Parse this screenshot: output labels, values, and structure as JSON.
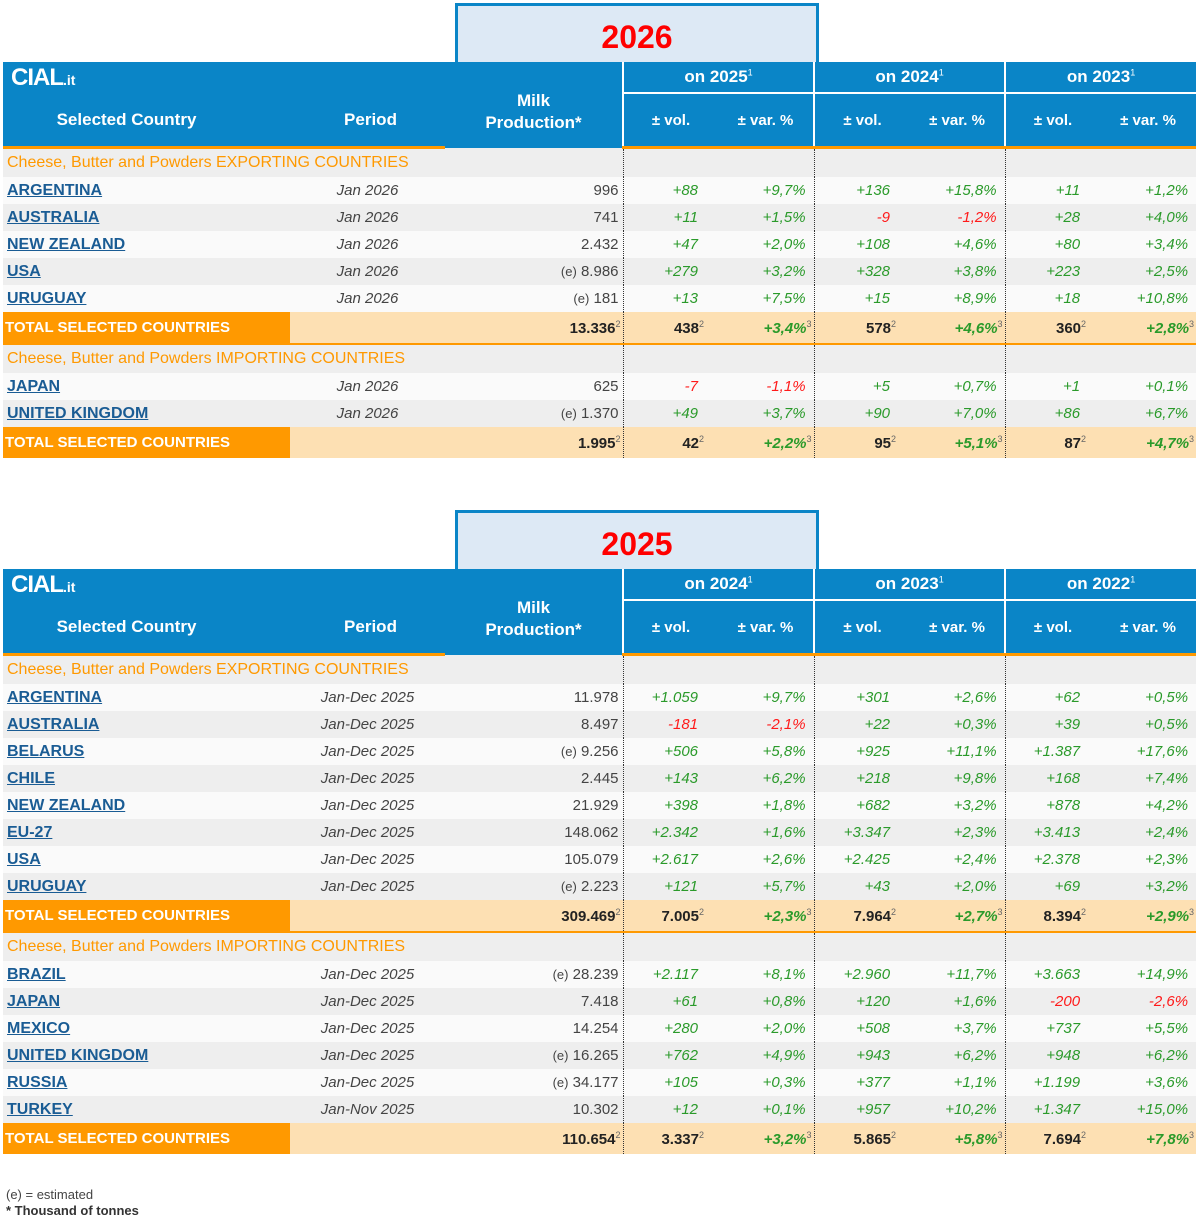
{
  "logo": {
    "main": "CIAL",
    "suffix": ".it"
  },
  "headers": {
    "country": "Selected Country",
    "period": "Period",
    "milk_line1": "Milk",
    "milk_line2": "Production*",
    "vol": "± vol.",
    "var": "± var. %"
  },
  "total_label": "TOTAL SELECTED COUNTRIES",
  "sup_vol": "2",
  "sup_pct": "3",
  "group_sup": "1",
  "tables": [
    {
      "year": "2026",
      "groups": [
        "on 2025",
        "on 2024",
        "on 2023"
      ],
      "sections": [
        {
          "title": "Cheese, Butter and Powders EXPORTING COUNTRIES",
          "rows": [
            {
              "country": "ARGENTINA",
              "period": "Jan 2026",
              "est": false,
              "milk": "996",
              "vals": [
                "+88",
                "+9,7%",
                "+136",
                "+15,8%",
                "+11",
                "+1,2%"
              ]
            },
            {
              "country": "AUSTRALIA",
              "period": "Jan 2026",
              "est": false,
              "milk": "741",
              "vals": [
                "+11",
                "+1,5%",
                "-9",
                "-1,2%",
                "+28",
                "+4,0%"
              ]
            },
            {
              "country": "NEW ZEALAND",
              "period": "Jan 2026",
              "est": false,
              "milk": "2.432",
              "vals": [
                "+47",
                "+2,0%",
                "+108",
                "+4,6%",
                "+80",
                "+3,4%"
              ]
            },
            {
              "country": "USA",
              "period": "Jan 2026",
              "est": true,
              "milk": "8.986",
              "vals": [
                "+279",
                "+3,2%",
                "+328",
                "+3,8%",
                "+223",
                "+2,5%"
              ]
            },
            {
              "country": "URUGUAY",
              "period": "Jan 2026",
              "est": true,
              "milk": "181",
              "vals": [
                "+13",
                "+7,5%",
                "+15",
                "+8,9%",
                "+18",
                "+10,8%"
              ]
            }
          ],
          "total": {
            "milk": "13.336",
            "vals": [
              "438",
              "+3,4%",
              "578",
              "+4,6%",
              "360",
              "+2,8%"
            ]
          }
        },
        {
          "title": "Cheese, Butter and Powders IMPORTING COUNTRIES",
          "rows": [
            {
              "country": "JAPAN",
              "period": "Jan 2026",
              "est": false,
              "milk": "625",
              "vals": [
                "-7",
                "-1,1%",
                "+5",
                "+0,7%",
                "+1",
                "+0,1%"
              ]
            },
            {
              "country": "UNITED KINGDOM",
              "period": "Jan 2026",
              "est": true,
              "milk": "1.370",
              "vals": [
                "+49",
                "+3,7%",
                "+90",
                "+7,0%",
                "+86",
                "+6,7%"
              ]
            }
          ],
          "total": {
            "milk": "1.995",
            "vals": [
              "42",
              "+2,2%",
              "95",
              "+5,1%",
              "87",
              "+4,7%"
            ]
          }
        }
      ]
    },
    {
      "year": "2025",
      "groups": [
        "on 2024",
        "on 2023",
        "on 2022"
      ],
      "sections": [
        {
          "title": "Cheese, Butter and Powders EXPORTING COUNTRIES",
          "rows": [
            {
              "country": "ARGENTINA",
              "period": "Jan-Dec 2025",
              "est": false,
              "milk": "11.978",
              "vals": [
                "+1.059",
                "+9,7%",
                "+301",
                "+2,6%",
                "+62",
                "+0,5%"
              ]
            },
            {
              "country": "AUSTRALIA",
              "period": "Jan-Dec 2025",
              "est": false,
              "milk": "8.497",
              "vals": [
                "-181",
                "-2,1%",
                "+22",
                "+0,3%",
                "+39",
                "+0,5%"
              ]
            },
            {
              "country": "BELARUS",
              "period": "Jan-Dec 2025",
              "est": true,
              "milk": "9.256",
              "vals": [
                "+506",
                "+5,8%",
                "+925",
                "+11,1%",
                "+1.387",
                "+17,6%"
              ]
            },
            {
              "country": "CHILE",
              "period": "Jan-Dec 2025",
              "est": false,
              "milk": "2.445",
              "vals": [
                "+143",
                "+6,2%",
                "+218",
                "+9,8%",
                "+168",
                "+7,4%"
              ]
            },
            {
              "country": "NEW ZEALAND",
              "period": "Jan-Dec 2025",
              "est": false,
              "milk": "21.929",
              "vals": [
                "+398",
                "+1,8%",
                "+682",
                "+3,2%",
                "+878",
                "+4,2%"
              ]
            },
            {
              "country": "EU-27",
              "period": "Jan-Dec 2025",
              "est": false,
              "milk": "148.062",
              "vals": [
                "+2.342",
                "+1,6%",
                "+3.347",
                "+2,3%",
                "+3.413",
                "+2,4%"
              ]
            },
            {
              "country": "USA",
              "period": "Jan-Dec 2025",
              "est": false,
              "milk": "105.079",
              "vals": [
                "+2.617",
                "+2,6%",
                "+2.425",
                "+2,4%",
                "+2.378",
                "+2,3%"
              ]
            },
            {
              "country": "URUGUAY",
              "period": "Jan-Dec 2025",
              "est": true,
              "milk": "2.223",
              "vals": [
                "+121",
                "+5,7%",
                "+43",
                "+2,0%",
                "+69",
                "+3,2%"
              ]
            }
          ],
          "total": {
            "milk": "309.469",
            "vals": [
              "7.005",
              "+2,3%",
              "7.964",
              "+2,7%",
              "8.394",
              "+2,9%"
            ]
          }
        },
        {
          "title": "Cheese, Butter and Powders IMPORTING COUNTRIES",
          "rows": [
            {
              "country": "BRAZIL",
              "period": "Jan-Dec 2025",
              "est": true,
              "milk": "28.239",
              "vals": [
                "+2.117",
                "+8,1%",
                "+2.960",
                "+11,7%",
                "+3.663",
                "+14,9%"
              ]
            },
            {
              "country": "JAPAN",
              "period": "Jan-Dec 2025",
              "est": false,
              "milk": "7.418",
              "vals": [
                "+61",
                "+0,8%",
                "+120",
                "+1,6%",
                "-200",
                "-2,6%"
              ]
            },
            {
              "country": "MEXICO",
              "period": "Jan-Dec 2025",
              "est": false,
              "milk": "14.254",
              "vals": [
                "+280",
                "+2,0%",
                "+508",
                "+3,7%",
                "+737",
                "+5,5%"
              ]
            },
            {
              "country": "UNITED KINGDOM",
              "period": "Jan-Dec 2025",
              "est": true,
              "milk": "16.265",
              "vals": [
                "+762",
                "+4,9%",
                "+943",
                "+6,2%",
                "+948",
                "+6,2%"
              ]
            },
            {
              "country": "RUSSIA",
              "period": "Jan-Dec 2025",
              "est": true,
              "milk": "34.177",
              "vals": [
                "+105",
                "+0,3%",
                "+377",
                "+1,1%",
                "+1.199",
                "+3,6%"
              ]
            },
            {
              "country": "TURKEY",
              "period": "Jan-Nov 2025",
              "est": false,
              "milk": "10.302",
              "vals": [
                "+12",
                "+0,1%",
                "+957",
                "+10,2%",
                "+1.347",
                "+15,0%"
              ]
            }
          ],
          "total": {
            "milk": "110.654",
            "vals": [
              "3.337",
              "+3,2%",
              "5.865",
              "+5,8%",
              "7.694",
              "+7,8%"
            ]
          }
        }
      ]
    }
  ],
  "est_marker": "(e)",
  "footnotes": {
    "estimated": "(e) = estimated",
    "thousand": "* Thousand of tonnes"
  },
  "colors": {
    "header_blue": "#0a85c7",
    "orange": "#ff9900",
    "total_bg": "#fde0b3",
    "positive": "#2a9a2a",
    "negative": "#ff1a1a",
    "year": "#ff0000"
  }
}
